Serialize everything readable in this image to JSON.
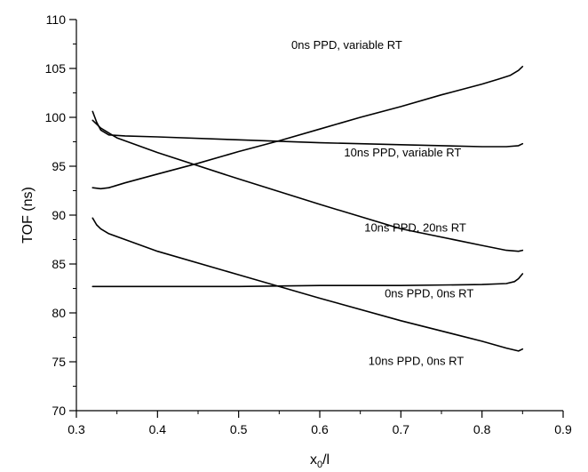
{
  "chart_data": {
    "type": "line",
    "title": "",
    "xlabel": "x",
    "xlabel_sub": "0",
    "xlabel_suffix": "/l",
    "ylabel": "TOF (ns)",
    "xlim": [
      0.3,
      0.9
    ],
    "ylim": [
      70,
      110
    ],
    "xticks": [
      "0.3",
      "0.4",
      "0.5",
      "0.6",
      "0.7",
      "0.8",
      "0.9"
    ],
    "yticks": [
      "70",
      "75",
      "80",
      "85",
      "90",
      "95",
      "100",
      "105",
      "110"
    ],
    "grid": false,
    "series": [
      {
        "name": "0ns PPD, variable RT",
        "x": [
          0.32,
          0.33,
          0.34,
          0.36,
          0.4,
          0.45,
          0.5,
          0.55,
          0.6,
          0.65,
          0.7,
          0.75,
          0.8,
          0.82,
          0.835,
          0.845,
          0.85
        ],
        "y": [
          92.8,
          92.7,
          92.8,
          93.3,
          94.2,
          95.3,
          96.5,
          97.6,
          98.8,
          100.0,
          101.1,
          102.3,
          103.4,
          103.9,
          104.3,
          104.8,
          105.2
        ]
      },
      {
        "name": "10ns PPD, variable RT",
        "x": [
          0.32,
          0.325,
          0.33,
          0.34,
          0.36,
          0.4,
          0.5,
          0.6,
          0.7,
          0.8,
          0.83,
          0.845,
          0.85
        ],
        "y": [
          100.6,
          99.5,
          98.7,
          98.2,
          98.1,
          98.0,
          97.7,
          97.4,
          97.2,
          97.0,
          97.0,
          97.1,
          97.3
        ]
      },
      {
        "name": "10ns PPD, 20ns RT",
        "x": [
          0.32,
          0.33,
          0.35,
          0.4,
          0.5,
          0.6,
          0.7,
          0.8,
          0.83,
          0.845,
          0.85
        ],
        "y": [
          99.7,
          98.9,
          97.9,
          96.4,
          93.7,
          91.1,
          88.6,
          86.9,
          86.4,
          86.3,
          86.4
        ]
      },
      {
        "name": "0ns PPD, 0ns RT",
        "x": [
          0.32,
          0.4,
          0.5,
          0.6,
          0.7,
          0.8,
          0.83,
          0.84,
          0.845,
          0.85
        ],
        "y": [
          82.7,
          82.7,
          82.7,
          82.8,
          82.8,
          82.9,
          83.0,
          83.2,
          83.5,
          84.0
        ]
      },
      {
        "name": "10ns PPD, 0ns RT",
        "x": [
          0.32,
          0.325,
          0.33,
          0.34,
          0.36,
          0.4,
          0.5,
          0.6,
          0.7,
          0.8,
          0.83,
          0.845,
          0.85
        ],
        "y": [
          89.7,
          89.0,
          88.6,
          88.1,
          87.5,
          86.3,
          83.9,
          81.5,
          79.2,
          77.1,
          76.4,
          76.1,
          76.3
        ]
      }
    ],
    "annotations": [
      {
        "text": "0ns PPD, variable RT",
        "x": 0.565,
        "y": 107.0
      },
      {
        "text": "10ns PPD, variable RT",
        "x": 0.63,
        "y": 96.0
      },
      {
        "text": "10ns PPD, 20ns RT",
        "x": 0.655,
        "y": 88.3
      },
      {
        "text": "0ns PPD, 0ns RT",
        "x": 0.68,
        "y": 81.6
      },
      {
        "text": "10ns PPD, 0ns RT",
        "x": 0.66,
        "y": 74.7
      }
    ]
  }
}
